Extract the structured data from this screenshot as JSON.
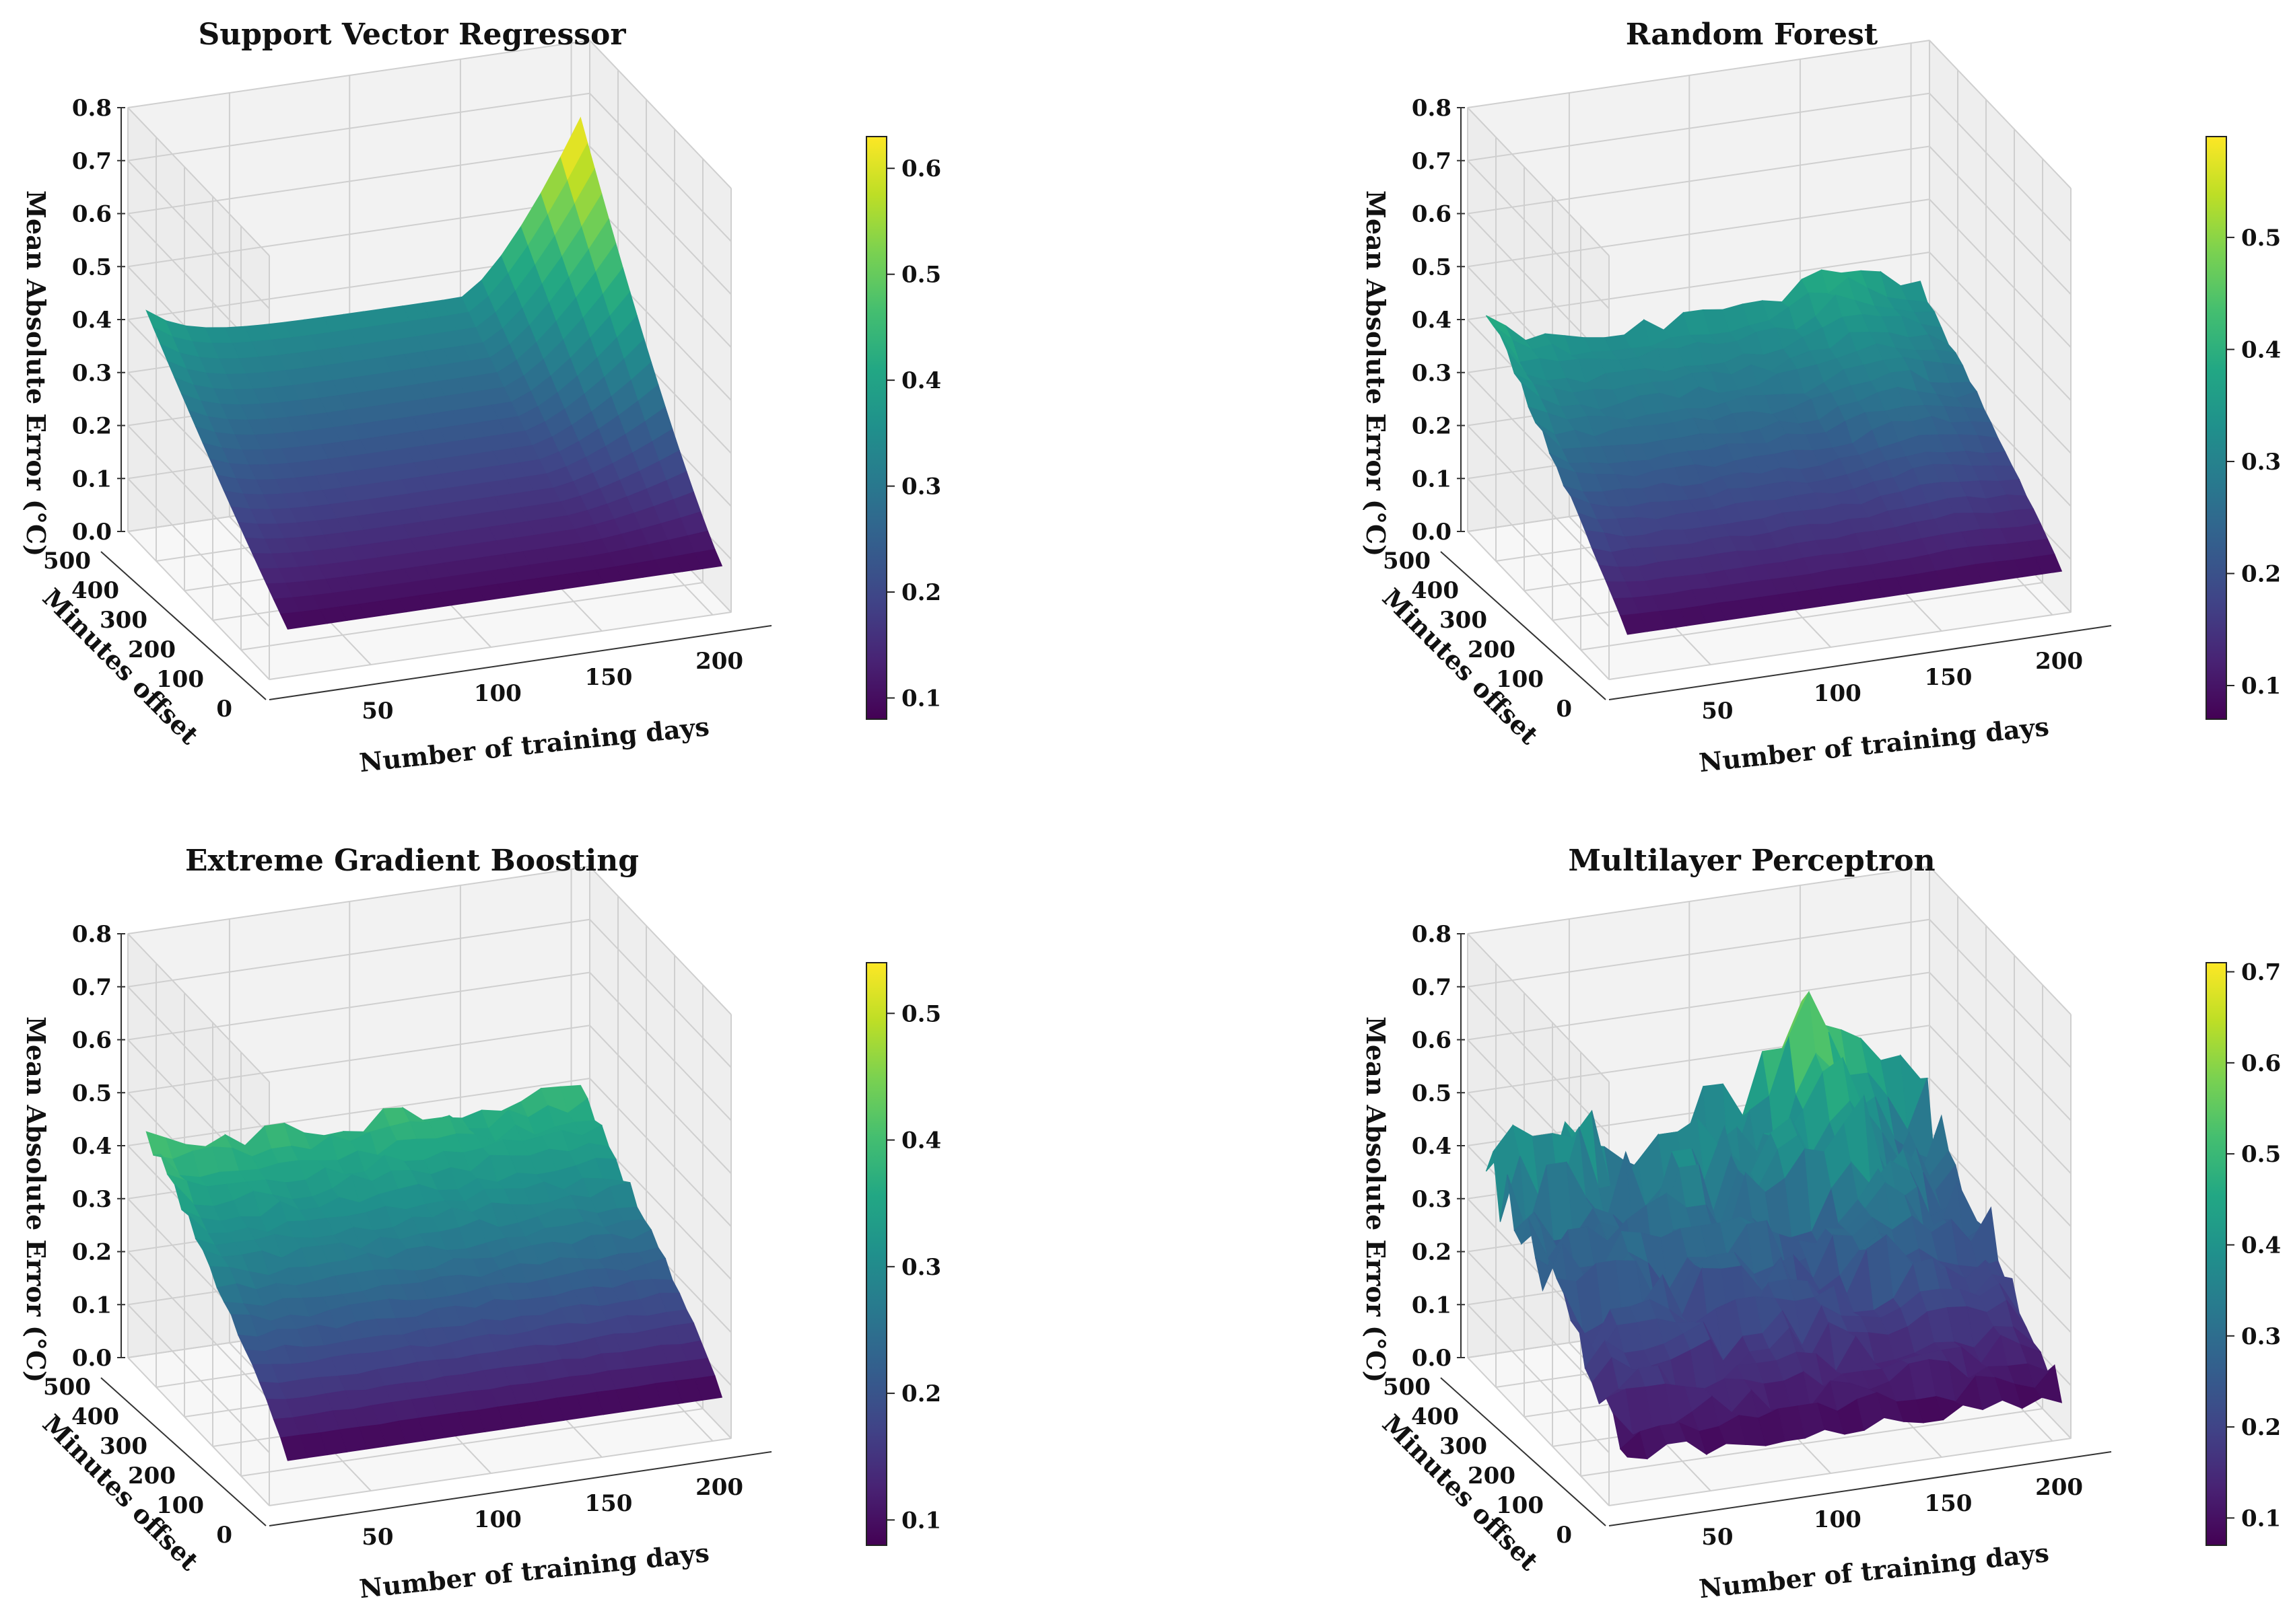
{
  "chart_data": [
    {
      "type": "surface3d",
      "title": "Support Vector Regressor",
      "xlabel": "Number of training days",
      "ylabel": "Minutes offset",
      "zlabel": "Mean Absolute Error (°C)",
      "xticks": [
        "50",
        "100",
        "150",
        "200"
      ],
      "yticks": [
        "0",
        "100",
        "200",
        "300",
        "400",
        "500"
      ],
      "zticks": [
        "0.0",
        "0.1",
        "0.2",
        "0.3",
        "0.4",
        "0.5",
        "0.6",
        "0.7",
        "0.8"
      ],
      "colorbar_ticks": [
        "0.1",
        "0.2",
        "0.3",
        "0.4",
        "0.5",
        "0.6"
      ],
      "colorbar_range": [
        0.08,
        0.63
      ],
      "surface": {
        "style": "svr",
        "z_min": 0.08,
        "z_max": 0.63
      }
    },
    {
      "type": "surface3d",
      "title": "Random Forest",
      "xlabel": "Number of training days",
      "ylabel": "Minutes offset",
      "zlabel": "Mean Absolute Error (°C)",
      "xticks": [
        "50",
        "100",
        "150",
        "200"
      ],
      "yticks": [
        "0",
        "100",
        "200",
        "300",
        "400",
        "500"
      ],
      "zticks": [
        "0.0",
        "0.1",
        "0.2",
        "0.3",
        "0.4",
        "0.5",
        "0.6",
        "0.7",
        "0.8"
      ],
      "colorbar_ticks": [
        "0.1",
        "0.2",
        "0.3",
        "0.4",
        "0.5"
      ],
      "colorbar_range": [
        0.07,
        0.59
      ],
      "surface": {
        "style": "rf",
        "z_min": 0.07,
        "z_max": 0.59
      }
    },
    {
      "type": "surface3d",
      "title": "Extreme Gradient Boosting",
      "xlabel": "Number of training days",
      "ylabel": "Minutes offset",
      "zlabel": "Mean Absolute Error (°C)",
      "xticks": [
        "50",
        "100",
        "150",
        "200"
      ],
      "yticks": [
        "0",
        "100",
        "200",
        "300",
        "400",
        "500"
      ],
      "zticks": [
        "0.0",
        "0.1",
        "0.2",
        "0.3",
        "0.4",
        "0.5",
        "0.6",
        "0.7",
        "0.8"
      ],
      "colorbar_ticks": [
        "0.1",
        "0.2",
        "0.3",
        "0.4",
        "0.5"
      ],
      "colorbar_range": [
        0.08,
        0.54
      ],
      "surface": {
        "style": "xgb",
        "z_min": 0.08,
        "z_max": 0.54
      }
    },
    {
      "type": "surface3d",
      "title": "Multilayer Perceptron",
      "xlabel": "Number of training days",
      "ylabel": "Minutes offset",
      "zlabel": "Mean Absolute Error (°C)",
      "xticks": [
        "50",
        "100",
        "150",
        "200"
      ],
      "yticks": [
        "0",
        "100",
        "200",
        "300",
        "400",
        "500"
      ],
      "zticks": [
        "0.0",
        "0.1",
        "0.2",
        "0.3",
        "0.4",
        "0.5",
        "0.6",
        "0.7",
        "0.8"
      ],
      "colorbar_ticks": [
        "0.1",
        "0.2",
        "0.3",
        "0.4",
        "0.5",
        "0.6",
        "0.7"
      ],
      "colorbar_range": [
        0.07,
        0.71
      ],
      "surface": {
        "style": "mlp",
        "z_min": 0.07,
        "z_max": 0.71
      }
    }
  ]
}
